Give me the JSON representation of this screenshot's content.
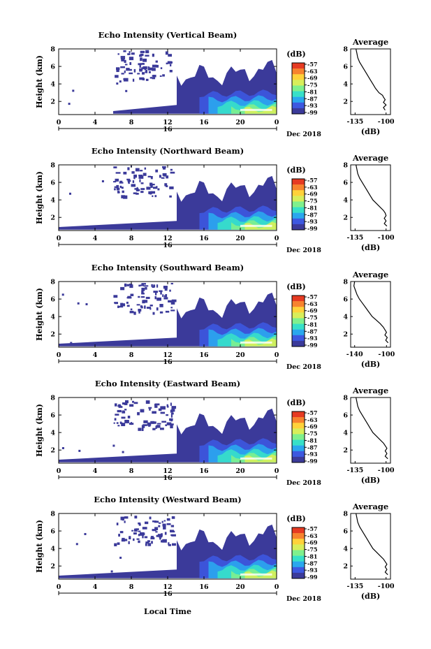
{
  "figure": {
    "xlabel": "Local Time",
    "date_label": "Dec 2018",
    "day_label": "16",
    "colorbar_unit": "(dB)",
    "colorbar_ticks": [
      "-57",
      "-63",
      "-69",
      "-75",
      "-81",
      "-87",
      "-93",
      "-99"
    ],
    "colorbar_colors": [
      "#e63a22",
      "#f7832e",
      "#ffd23a",
      "#d8ee5a",
      "#7ff08d",
      "#37e0c8",
      "#2aa7ee",
      "#3d58e0",
      "#3b3a9a"
    ],
    "profile_title": "Average",
    "profile_xlabel": "(dB)"
  },
  "chart_data": [
    {
      "type": "heatmap",
      "title": "Echo Intensity (Vertical Beam)",
      "xlabel": "Local Time",
      "ylabel": "Height (km)",
      "xticks": [
        "0",
        "4",
        "8",
        "12",
        "16",
        "20",
        "0"
      ],
      "xlim": [
        0,
        24
      ],
      "yticks": [
        "2",
        "4",
        "6",
        "8"
      ],
      "ylim": [
        0.5,
        8
      ],
      "value_unit": "dB",
      "color_range": [
        -99,
        -57
      ],
      "profile": {
        "type": "line",
        "title": "Average",
        "xlabel": "(dB)",
        "xticks": [
          "-135",
          "-100"
        ],
        "xlim": [
          -140,
          -95
        ],
        "yticks": [
          "2",
          "4",
          "6",
          "8"
        ],
        "ylim": [
          0.5,
          8
        ],
        "values": [
          [
            -101,
            1.0
          ],
          [
            -103,
            1.3
          ],
          [
            -100,
            1.6
          ],
          [
            -103,
            1.9
          ],
          [
            -101,
            2.2
          ],
          [
            -103,
            2.5
          ],
          [
            -104,
            2.7
          ],
          [
            -108,
            3.0
          ],
          [
            -112,
            3.5
          ],
          [
            -115,
            4.0
          ],
          [
            -118,
            4.5
          ],
          [
            -121,
            5.0
          ],
          [
            -124,
            5.5
          ],
          [
            -127,
            6.0
          ],
          [
            -130,
            6.5
          ],
          [
            -132,
            7.0
          ],
          [
            -133,
            7.5
          ],
          [
            -134,
            8.0
          ]
        ]
      }
    },
    {
      "type": "heatmap",
      "title": "Echo Intensity (Northward Beam)",
      "xlabel": "Local Time",
      "ylabel": "Height (km)",
      "xticks": [
        "0",
        "4",
        "8",
        "12",
        "16",
        "20",
        "0"
      ],
      "xlim": [
        0,
        24
      ],
      "yticks": [
        "2",
        "4",
        "6",
        "8"
      ],
      "ylim": [
        0.5,
        8
      ],
      "value_unit": "dB",
      "color_range": [
        -99,
        -57
      ],
      "profile": {
        "type": "line",
        "title": "Average",
        "xlabel": "(dB)",
        "xticks": [
          "-135",
          "-100"
        ],
        "xlim": [
          -140,
          -95
        ],
        "yticks": [
          "2",
          "4",
          "6",
          "8"
        ],
        "ylim": [
          0.5,
          8
        ],
        "values": [
          [
            -99,
            1.0
          ],
          [
            -102,
            1.3
          ],
          [
            -100,
            1.6
          ],
          [
            -102,
            1.9
          ],
          [
            -100,
            2.2
          ],
          [
            -101,
            2.5
          ],
          [
            -103,
            2.8
          ],
          [
            -107,
            3.2
          ],
          [
            -111,
            3.6
          ],
          [
            -115,
            4.0
          ],
          [
            -118,
            4.5
          ],
          [
            -121,
            5.0
          ],
          [
            -124,
            5.5
          ],
          [
            -127,
            6.0
          ],
          [
            -130,
            6.5
          ],
          [
            -132,
            7.0
          ],
          [
            -133,
            7.5
          ],
          [
            -134,
            8.0
          ]
        ]
      }
    },
    {
      "type": "heatmap",
      "title": "Echo Intensity (Southward Beam)",
      "xlabel": "Local Time",
      "ylabel": "Height (km)",
      "xticks": [
        "0",
        "4",
        "8",
        "12",
        "16",
        "20",
        "0"
      ],
      "xlim": [
        0,
        24
      ],
      "yticks": [
        "2",
        "4",
        "6",
        "8"
      ],
      "ylim": [
        0.5,
        8
      ],
      "value_unit": "dB",
      "color_range": [
        -99,
        -57
      ],
      "profile": {
        "type": "line",
        "title": "Average",
        "xlabel": "(dB)",
        "xticks": [
          "-140",
          "-100"
        ],
        "xlim": [
          -145,
          -95
        ],
        "yticks": [
          "2",
          "4",
          "6",
          "8"
        ],
        "ylim": [
          0.5,
          8
        ],
        "values": [
          [
            -98,
            1.0
          ],
          [
            -101,
            1.3
          ],
          [
            -99,
            1.6
          ],
          [
            -102,
            1.9
          ],
          [
            -100,
            2.2
          ],
          [
            -102,
            2.5
          ],
          [
            -104,
            2.8
          ],
          [
            -108,
            3.2
          ],
          [
            -113,
            3.6
          ],
          [
            -118,
            4.0
          ],
          [
            -122,
            4.5
          ],
          [
            -126,
            5.0
          ],
          [
            -130,
            5.5
          ],
          [
            -134,
            6.0
          ],
          [
            -137,
            6.5
          ],
          [
            -139,
            7.0
          ],
          [
            -141,
            7.5
          ],
          [
            -140,
            8.0
          ]
        ]
      }
    },
    {
      "type": "heatmap",
      "title": "Echo Intensity (Eastward Beam)",
      "xlabel": "Local Time",
      "ylabel": "Height (km)",
      "xticks": [
        "0",
        "4",
        "8",
        "12",
        "16",
        "20",
        "0"
      ],
      "xlim": [
        0,
        24
      ],
      "yticks": [
        "2",
        "4",
        "6",
        "8"
      ],
      "ylim": [
        0.5,
        8
      ],
      "value_unit": "dB",
      "color_range": [
        -99,
        -57
      ],
      "profile": {
        "type": "line",
        "title": "Average",
        "xlabel": "(dB)",
        "xticks": [
          "-135",
          "-100"
        ],
        "xlim": [
          -140,
          -95
        ],
        "yticks": [
          "2",
          "4",
          "6",
          "8"
        ],
        "ylim": [
          0.5,
          8
        ],
        "values": [
          [
            -98,
            1.0
          ],
          [
            -101,
            1.3
          ],
          [
            -99,
            1.6
          ],
          [
            -101,
            1.9
          ],
          [
            -99,
            2.2
          ],
          [
            -101,
            2.5
          ],
          [
            -103,
            2.8
          ],
          [
            -107,
            3.2
          ],
          [
            -111,
            3.6
          ],
          [
            -115,
            4.0
          ],
          [
            -118,
            4.5
          ],
          [
            -121,
            5.0
          ],
          [
            -124,
            5.5
          ],
          [
            -127,
            6.0
          ],
          [
            -130,
            6.5
          ],
          [
            -132,
            7.0
          ],
          [
            -133,
            7.5
          ],
          [
            -134,
            8.0
          ]
        ]
      }
    },
    {
      "type": "heatmap",
      "title": "Echo Intensity (Westward Beam)",
      "xlabel": "Local Time",
      "ylabel": "Height (km)",
      "xticks": [
        "0",
        "4",
        "8",
        "12",
        "16",
        "20",
        "0"
      ],
      "xlim": [
        0,
        24
      ],
      "yticks": [
        "2",
        "4",
        "6",
        "8"
      ],
      "ylim": [
        0.5,
        8
      ],
      "value_unit": "dB",
      "color_range": [
        -99,
        -57
      ],
      "profile": {
        "type": "line",
        "title": "Average",
        "xlabel": "(dB)",
        "xticks": [
          "-135",
          "-100"
        ],
        "xlim": [
          -140,
          -95
        ],
        "yticks": [
          "2",
          "4",
          "6",
          "8"
        ],
        "ylim": [
          0.5,
          8
        ],
        "values": [
          [
            -98,
            1.0
          ],
          [
            -101,
            1.3
          ],
          [
            -99,
            1.6
          ],
          [
            -101,
            1.9
          ],
          [
            -99,
            2.2
          ],
          [
            -101,
            2.5
          ],
          [
            -103,
            2.8
          ],
          [
            -107,
            3.2
          ],
          [
            -111,
            3.6
          ],
          [
            -115,
            4.0
          ],
          [
            -118,
            4.5
          ],
          [
            -121,
            5.0
          ],
          [
            -124,
            5.5
          ],
          [
            -127,
            6.0
          ],
          [
            -130,
            6.5
          ],
          [
            -132,
            7.0
          ],
          [
            -133,
            7.5
          ],
          [
            -134,
            8.0
          ]
        ]
      }
    }
  ]
}
